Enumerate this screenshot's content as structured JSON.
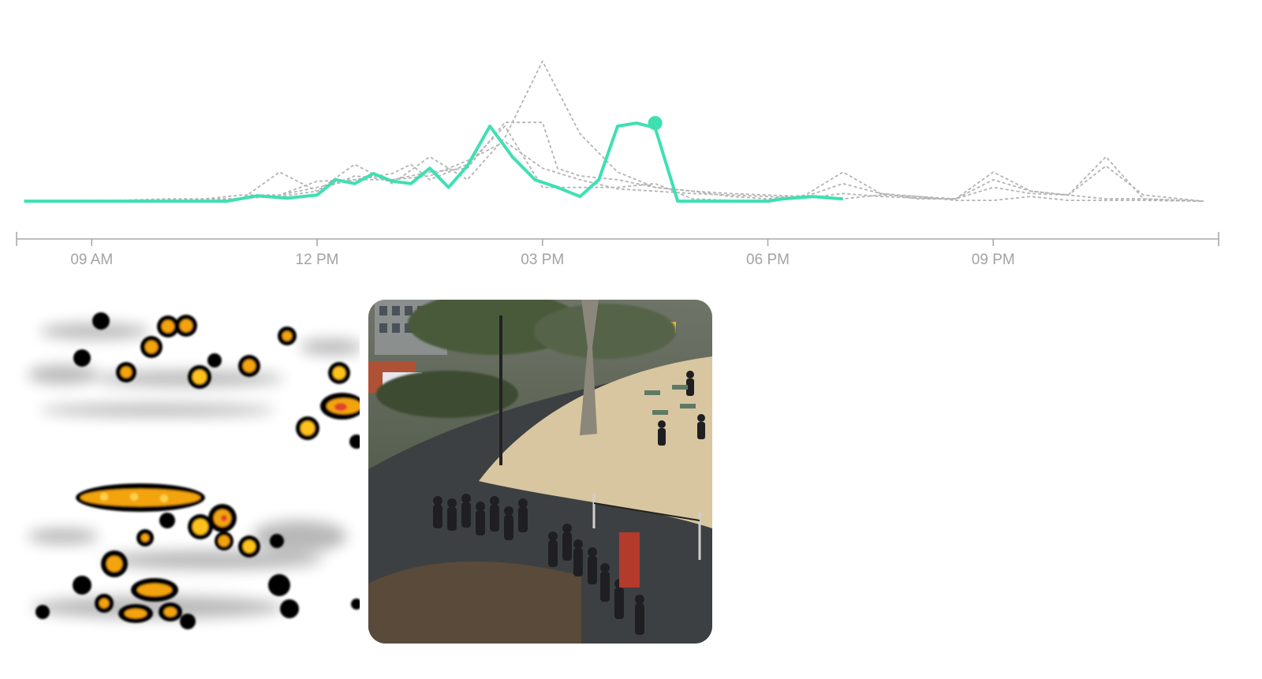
{
  "chart_data": {
    "type": "line",
    "x_axis": {
      "ticks": [
        "09 AM",
        "12 PM",
        "03 PM",
        "06 PM",
        "09 PM"
      ],
      "tick_hours": [
        9,
        12,
        15,
        18,
        21
      ],
      "range_hours": [
        8,
        24
      ]
    },
    "colors": {
      "current": "#3ee0b2",
      "reference": "#b4b4b4",
      "axis": "#a9a9a9"
    },
    "series": [
      {
        "style": "solid",
        "marker_last_point": true,
        "points": [
          [
            8.1,
            2
          ],
          [
            8.5,
            2
          ],
          [
            9,
            2
          ],
          [
            9.5,
            2
          ],
          [
            10,
            2
          ],
          [
            10.5,
            2
          ],
          [
            10.8,
            2
          ],
          [
            11.2,
            9
          ],
          [
            11.6,
            6
          ],
          [
            12,
            10
          ],
          [
            12.25,
            30
          ],
          [
            12.5,
            25
          ],
          [
            12.75,
            38
          ],
          [
            13,
            28
          ],
          [
            13.25,
            25
          ],
          [
            13.5,
            45
          ],
          [
            13.75,
            20
          ],
          [
            14,
            48
          ],
          [
            14.3,
            100
          ],
          [
            14.6,
            60
          ],
          [
            14.9,
            30
          ],
          [
            15.2,
            20
          ],
          [
            15.5,
            8
          ],
          [
            15.75,
            30
          ],
          [
            16,
            100
          ],
          [
            16.25,
            104
          ],
          [
            16.5,
            98
          ],
          [
            16.8,
            2
          ],
          [
            17.2,
            2
          ],
          [
            17.6,
            2
          ],
          [
            18,
            2
          ],
          [
            18.2,
            5
          ],
          [
            18.6,
            8
          ],
          [
            19,
            5
          ]
        ]
      },
      {
        "style": "dashed",
        "points": [
          [
            8.1,
            2
          ],
          [
            9,
            2
          ],
          [
            10,
            2
          ],
          [
            10.5,
            5
          ],
          [
            11,
            10
          ],
          [
            11.5,
            10
          ],
          [
            12,
            28
          ],
          [
            12.5,
            30
          ],
          [
            13,
            38
          ],
          [
            13.25,
            50
          ],
          [
            13.5,
            30
          ],
          [
            14,
            50
          ],
          [
            14.5,
            100
          ],
          [
            14.75,
            60
          ],
          [
            15,
            20
          ],
          [
            15.5,
            20
          ],
          [
            16,
            20
          ],
          [
            16.5,
            25
          ],
          [
            17,
            5
          ],
          [
            17.5,
            3
          ],
          [
            18,
            3
          ],
          [
            18.5,
            8
          ],
          [
            19,
            5
          ],
          [
            19.5,
            10
          ],
          [
            20,
            8
          ],
          [
            20.5,
            3
          ],
          [
            21,
            3
          ],
          [
            21.5,
            8
          ],
          [
            22,
            3
          ],
          [
            22.5,
            3
          ],
          [
            23,
            3
          ],
          [
            23.8,
            2
          ]
        ]
      },
      {
        "style": "dashed",
        "points": [
          [
            8.1,
            2
          ],
          [
            9,
            3
          ],
          [
            10,
            3
          ],
          [
            11,
            5
          ],
          [
            11.5,
            10
          ],
          [
            12,
            20
          ],
          [
            12.5,
            30
          ],
          [
            13,
            30
          ],
          [
            13.5,
            35
          ],
          [
            14,
            55
          ],
          [
            14.5,
            80
          ],
          [
            15,
            45
          ],
          [
            15.5,
            30
          ],
          [
            16,
            18
          ],
          [
            16.5,
            15
          ],
          [
            17,
            12
          ],
          [
            17.5,
            10
          ],
          [
            18,
            8
          ],
          [
            18.5,
            6
          ],
          [
            19,
            12
          ],
          [
            19.5,
            8
          ],
          [
            20,
            6
          ],
          [
            20.5,
            5
          ],
          [
            21,
            20
          ],
          [
            21.5,
            12
          ],
          [
            22,
            10
          ],
          [
            22.5,
            5
          ],
          [
            23,
            5
          ],
          [
            23.8,
            2
          ]
        ]
      },
      {
        "style": "dashed",
        "points": [
          [
            8.1,
            2
          ],
          [
            9,
            2
          ],
          [
            10,
            2
          ],
          [
            10.8,
            5
          ],
          [
            11.5,
            8
          ],
          [
            12,
            15
          ],
          [
            12.5,
            35
          ],
          [
            13,
            30
          ],
          [
            13.5,
            40
          ],
          [
            14,
            45
          ],
          [
            14.5,
            105
          ],
          [
            15,
            105
          ],
          [
            15.2,
            45
          ],
          [
            15.5,
            35
          ],
          [
            16,
            30
          ],
          [
            16.5,
            20
          ],
          [
            17,
            15
          ],
          [
            17.5,
            12
          ],
          [
            18,
            10
          ],
          [
            18.5,
            8
          ],
          [
            19,
            25
          ],
          [
            19.5,
            12
          ],
          [
            20,
            8
          ],
          [
            20.5,
            5
          ],
          [
            21,
            30
          ],
          [
            21.5,
            15
          ],
          [
            22,
            10
          ],
          [
            22.5,
            48
          ],
          [
            23,
            10
          ],
          [
            23.8,
            2
          ]
        ]
      },
      {
        "style": "dashed",
        "points": [
          [
            8.1,
            2
          ],
          [
            9,
            2
          ],
          [
            10,
            5
          ],
          [
            11,
            5
          ],
          [
            11.5,
            40
          ],
          [
            12,
            15
          ],
          [
            12.5,
            50
          ],
          [
            13,
            25
          ],
          [
            13.5,
            60
          ],
          [
            14,
            30
          ],
          [
            14.5,
            85
          ],
          [
            15,
            185
          ],
          [
            15.5,
            90
          ],
          [
            16,
            40
          ],
          [
            16.5,
            20
          ],
          [
            17,
            15
          ],
          [
            17.5,
            8
          ],
          [
            18,
            5
          ],
          [
            18.5,
            10
          ],
          [
            19,
            40
          ],
          [
            19.5,
            12
          ],
          [
            20,
            5
          ],
          [
            20.5,
            5
          ],
          [
            21,
            40
          ],
          [
            21.5,
            15
          ],
          [
            22,
            10
          ],
          [
            22.5,
            60
          ],
          [
            23,
            5
          ],
          [
            23.8,
            2
          ]
        ]
      }
    ]
  },
  "panels": {
    "heatmap": {
      "colors": [
        "#000000",
        "#f3a30c",
        "#ffd14a",
        "#e0452b"
      ]
    },
    "photo": {
      "colors": [
        "#3d4042",
        "#d8c6a0",
        "#4a5a3a"
      ]
    }
  }
}
